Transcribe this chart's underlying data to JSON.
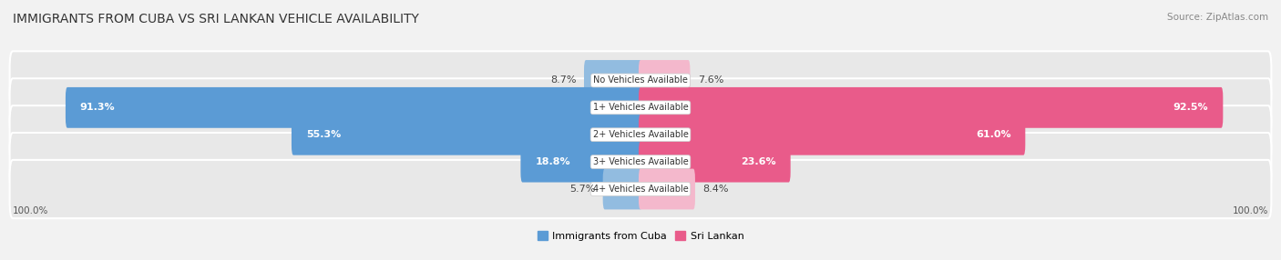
{
  "title": "IMMIGRANTS FROM CUBA VS SRI LANKAN VEHICLE AVAILABILITY",
  "source": "Source: ZipAtlas.com",
  "categories": [
    "No Vehicles Available",
    "1+ Vehicles Available",
    "2+ Vehicles Available",
    "3+ Vehicles Available",
    "4+ Vehicles Available"
  ],
  "cuba_values": [
    8.7,
    91.3,
    55.3,
    18.8,
    5.7
  ],
  "sri_values": [
    7.6,
    92.5,
    61.0,
    23.6,
    8.4
  ],
  "cuba_color": "#92bce0",
  "cuba_color_dark": "#5b9bd5",
  "sri_color": "#f4b8cc",
  "sri_color_dark": "#e95b8a",
  "cuba_label": "Immigrants from Cuba",
  "sri_label": "Sri Lankan",
  "bg_color": "#f2f2f2",
  "row_bg_color": "#e8e8e8",
  "axis_label_left": "100.0%",
  "axis_label_right": "100.0%",
  "max_val": 100.0,
  "title_fontsize": 10,
  "source_fontsize": 7.5,
  "bar_label_fontsize": 8,
  "cat_label_fontsize": 7,
  "legend_fontsize": 8,
  "inside_threshold": 15
}
